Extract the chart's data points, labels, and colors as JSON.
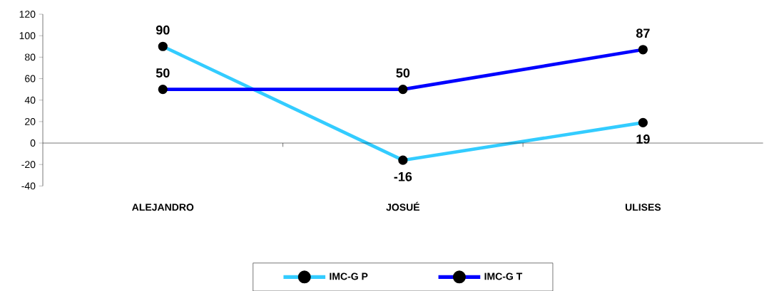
{
  "chart_data": {
    "type": "line",
    "categories": [
      "ALEJANDRO",
      "JOSUÉ",
      "ULISES"
    ],
    "series": [
      {
        "name": "IMC-G P",
        "color": "#33ccff",
        "values": [
          90,
          -16,
          19
        ]
      },
      {
        "name": "IMC-G T",
        "color": "#0000ff",
        "values": [
          50,
          50,
          87
        ]
      }
    ],
    "ylim": [
      -40,
      120
    ],
    "yticks": [
      -40,
      -20,
      0,
      20,
      40,
      60,
      80,
      100,
      120
    ],
    "ref_lines": [
      {
        "axis": "y",
        "value": 0,
        "color": "#000000"
      }
    ],
    "marker": "circle",
    "line_style": "solid",
    "data_labels": true,
    "legend": "bottom",
    "grid": false
  }
}
